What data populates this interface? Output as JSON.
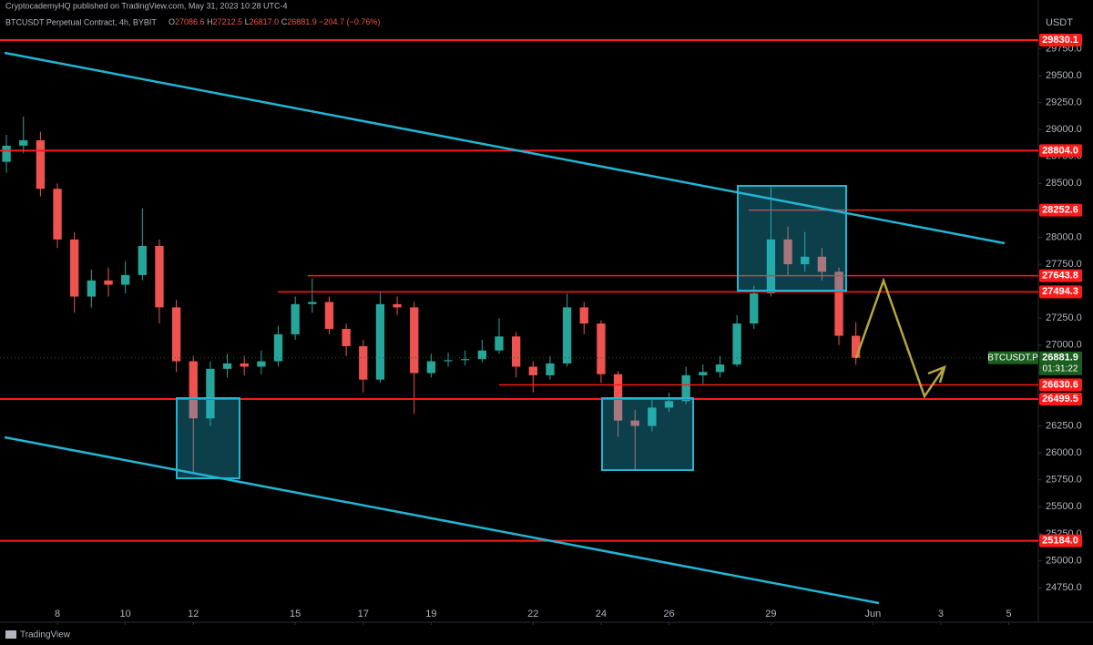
{
  "header": "CryptocademyHQ published on TradingView.com, May 31, 2023 10:28 UTC-4",
  "footer": "TradingView",
  "chart_data": {
    "type": "candlestick",
    "title": "BTCUSDT Perpetual Contract, 4h, BYBIT",
    "ohlc": [
      {
        "key": "O",
        "value": "27086.6"
      },
      {
        "key": "H",
        "value": "27212.5"
      },
      {
        "key": "L",
        "value": "26817.0"
      },
      {
        "key": "C",
        "value": "26881.9"
      }
    ],
    "change": "−204.7 (−0.76%)",
    "unit": "USDT",
    "up_color": "#26a69a",
    "down_color": "#ef5350",
    "level_color": "#ff1a1a",
    "x": [
      6.5,
      7,
      7.5,
      8,
      8.5,
      9,
      9.5,
      10,
      10.5,
      11,
      11.5,
      12,
      12.5,
      13,
      13.5,
      14,
      14.5,
      15,
      15.5,
      16,
      16.5,
      17,
      17.5,
      18,
      18.5,
      19,
      19.5,
      20,
      20.5,
      21,
      21.5,
      22,
      22.5,
      23,
      23.5,
      24,
      24.5,
      25,
      25.5,
      26,
      26.5,
      27,
      27.5,
      28,
      28.5,
      29,
      29.5,
      30,
      30.5,
      31,
      31.5
    ],
    "open": [
      28700,
      28850,
      28900,
      28450,
      27980,
      27450,
      27600,
      27560,
      27650,
      27920,
      27350,
      26850,
      26320,
      26780,
      26830,
      26800,
      26850,
      27100,
      27380,
      27400,
      27150,
      26990,
      26680,
      27380,
      27350,
      26740,
      26850,
      26860,
      26870,
      26950,
      27080,
      26800,
      26720,
      26830,
      27350,
      27200,
      26730,
      26300,
      26250,
      26420,
      26480,
      26720,
      26750,
      26820,
      27200,
      27480,
      27980,
      27750,
      27820,
      27680,
      27086.6
    ],
    "high": [
      28950,
      29120,
      28980,
      28500,
      28050,
      27700,
      27720,
      27780,
      28270,
      27980,
      27420,
      26900,
      26850,
      26920,
      26900,
      26950,
      27180,
      27450,
      27620,
      27450,
      27200,
      27050,
      27500,
      27450,
      27400,
      26920,
      26930,
      26950,
      27050,
      27250,
      27120,
      26850,
      26900,
      27480,
      27400,
      27230,
      26760,
      26400,
      26500,
      26560,
      26800,
      26820,
      26900,
      27280,
      27550,
      28470,
      28100,
      28050,
      27900,
      27720,
      27212.5
    ],
    "low": [
      28600,
      28780,
      28380,
      27900,
      27300,
      27350,
      27450,
      27480,
      27600,
      27200,
      26750,
      25810,
      26250,
      26700,
      26720,
      26730,
      26800,
      27050,
      27300,
      27100,
      26900,
      26560,
      26650,
      27280,
      26360,
      26700,
      26800,
      26810,
      26840,
      26920,
      26700,
      26560,
      26680,
      26800,
      27100,
      26650,
      26150,
      25850,
      26200,
      26380,
      26450,
      26640,
      26700,
      26800,
      27150,
      27450,
      27650,
      27680,
      27600,
      27000,
      26817.0
    ],
    "close": [
      28850,
      28900,
      28450,
      27980,
      27450,
      27600,
      27560,
      27650,
      27920,
      27350,
      26850,
      26320,
      26780,
      26830,
      26800,
      26850,
      27100,
      27380,
      27400,
      27150,
      26990,
      26680,
      27380,
      27350,
      26740,
      26850,
      26860,
      26870,
      26950,
      27080,
      26800,
      26720,
      26830,
      27350,
      27200,
      26730,
      26300,
      26250,
      26420,
      26480,
      26720,
      26750,
      26820,
      27200,
      27480,
      27980,
      27750,
      27820,
      27680,
      27086.6,
      26881.9
    ],
    "xlim": [
      6.31,
      36.87
    ],
    "xticks": [
      8,
      10,
      12,
      15,
      17,
      19,
      22,
      24,
      26,
      29,
      {
        "value": 32,
        "label": "Jun"
      },
      {
        "value": 34,
        "label": "3"
      },
      {
        "value": 36,
        "label": "5"
      }
    ],
    "ylim": [
      24429,
      30201.5
    ],
    "yticks": [
      {
        "value": 24750,
        "label": "24750.0"
      },
      {
        "value": 25000,
        "label": "25000.0"
      },
      {
        "value": 25250,
        "label": "25250.0"
      },
      {
        "value": 25500,
        "label": "25500.0"
      },
      {
        "value": 25750,
        "label": "25750.0"
      },
      {
        "value": 26000,
        "label": "26000.0"
      },
      {
        "value": 26250,
        "label": "26250.0"
      },
      {
        "value": 26500,
        "label": "26500.0"
      },
      {
        "value": 26750,
        "label": "26750.0"
      },
      {
        "value": 27000,
        "label": "27000.0"
      },
      {
        "value": 27250,
        "label": "27250.0"
      },
      {
        "value": 27500,
        "label": "27500.0"
      },
      {
        "value": 27750,
        "label": "27750.0"
      },
      {
        "value": 28000,
        "label": "28000.0"
      },
      {
        "value": 28250,
        "label": "28250.0"
      },
      {
        "value": 28500,
        "label": "28500.0"
      },
      {
        "value": 28750,
        "label": "28750.0"
      },
      {
        "value": 29000,
        "label": "29000.0"
      },
      {
        "value": 29250,
        "label": "29250.0"
      },
      {
        "value": 29500,
        "label": "29500.0"
      },
      {
        "value": 29750,
        "label": "29750.0"
      }
    ],
    "levels": [
      {
        "value": 29830.1,
        "label": "29830.1",
        "x_start": null
      },
      {
        "value": 28804.0,
        "label": "28804.0",
        "x_start": null
      },
      {
        "value": 28252.6,
        "label": "28252.6",
        "x_start": 28.35
      },
      {
        "value": 27643.8,
        "label": "27643.8",
        "x_start": 15.36
      },
      {
        "value": 27494.3,
        "label": "27494.3",
        "x_start": 14.49
      },
      {
        "value": 26630.6,
        "label": "26630.6",
        "x_start": 21.0
      },
      {
        "value": 26499.5,
        "label": "26499.5",
        "x_start": null
      },
      {
        "value": 25184.0,
        "label": "25184.0",
        "x_start": null
      }
    ],
    "price_tag": {
      "symbol": "BTCUSDT.P",
      "price": 26881.9,
      "countdown": "01:31:22"
    }
  }
}
